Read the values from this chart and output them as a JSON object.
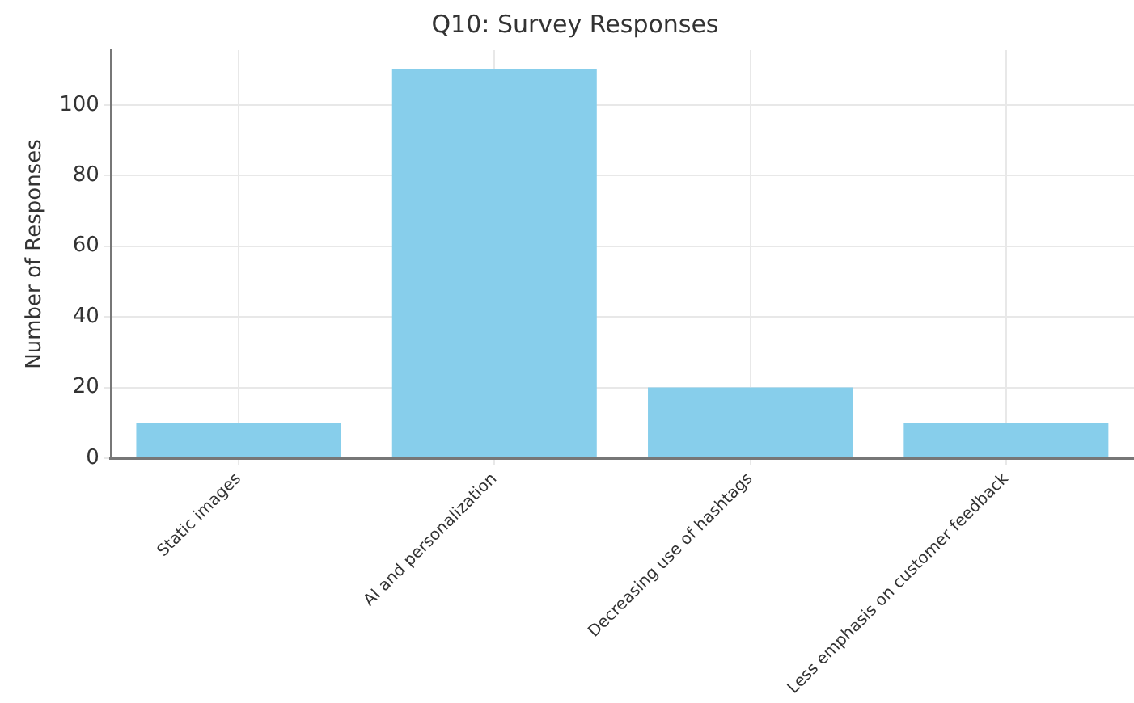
{
  "chart_data": {
    "type": "bar",
    "title": "Q10: Survey Responses",
    "ylabel": "Number of Responses",
    "categories": [
      "Static images",
      "AI and personalization",
      "Decreasing use of hashtags",
      "Less emphasis on customer feedback"
    ],
    "values": [
      10,
      110,
      20,
      10
    ],
    "color": "#87ceeb",
    "ylim": [
      0,
      115.5
    ],
    "yticks": [
      0,
      20,
      40,
      60,
      80,
      100
    ],
    "grid": true
  }
}
